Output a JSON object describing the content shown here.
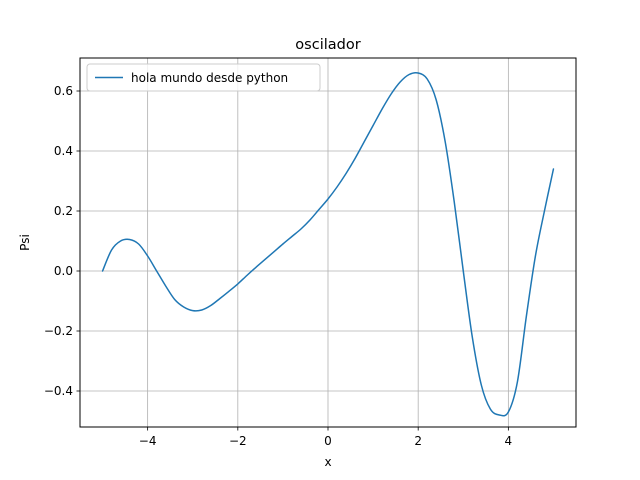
{
  "chart_data": {
    "type": "line",
    "title": "oscilador",
    "xlabel": "x",
    "ylabel": "Psi",
    "xlim": [
      -5.5,
      5.5
    ],
    "ylim": [
      -0.52,
      0.71
    ],
    "xticks": [
      -4,
      -2,
      0,
      2,
      4
    ],
    "xtick_labels": [
      "−4",
      "−2",
      "0",
      "2",
      "4"
    ],
    "yticks": [
      -0.4,
      -0.2,
      0.0,
      0.2,
      0.4,
      0.6
    ],
    "ytick_labels": [
      "−0.4",
      "−0.2",
      "0.0",
      "0.2",
      "0.4",
      "0.6"
    ],
    "grid": true,
    "legend_position": "upper-left",
    "series": [
      {
        "name": "hola mundo desde python",
        "color": "#1f77b4",
        "x": [
          -5.0,
          -4.8,
          -4.6,
          -4.4,
          -4.2,
          -4.0,
          -3.8,
          -3.6,
          -3.4,
          -3.2,
          -3.0,
          -2.8,
          -2.6,
          -2.4,
          -2.2,
          -2.0,
          -1.8,
          -1.6,
          -1.4,
          -1.2,
          -1.0,
          -0.8,
          -0.6,
          -0.4,
          -0.2,
          0.0,
          0.2,
          0.4,
          0.6,
          0.8,
          1.0,
          1.2,
          1.4,
          1.6,
          1.8,
          2.0,
          2.2,
          2.4,
          2.6,
          2.8,
          3.0,
          3.2,
          3.4,
          3.6,
          3.8,
          4.0,
          4.2,
          4.4,
          4.6,
          4.8,
          5.0
        ],
        "y": [
          0.0,
          0.07,
          0.1,
          0.105,
          0.09,
          0.05,
          0.0,
          -0.05,
          -0.095,
          -0.12,
          -0.132,
          -0.13,
          -0.115,
          -0.092,
          -0.068,
          -0.043,
          -0.015,
          0.012,
          0.038,
          0.064,
          0.09,
          0.115,
          0.14,
          0.17,
          0.205,
          0.24,
          0.28,
          0.325,
          0.375,
          0.43,
          0.485,
          0.54,
          0.59,
          0.63,
          0.655,
          0.66,
          0.64,
          0.57,
          0.43,
          0.23,
          0.0,
          -0.22,
          -0.38,
          -0.46,
          -0.48,
          -0.47,
          -0.37,
          -0.15,
          0.05,
          0.2,
          0.34
        ]
      }
    ]
  }
}
